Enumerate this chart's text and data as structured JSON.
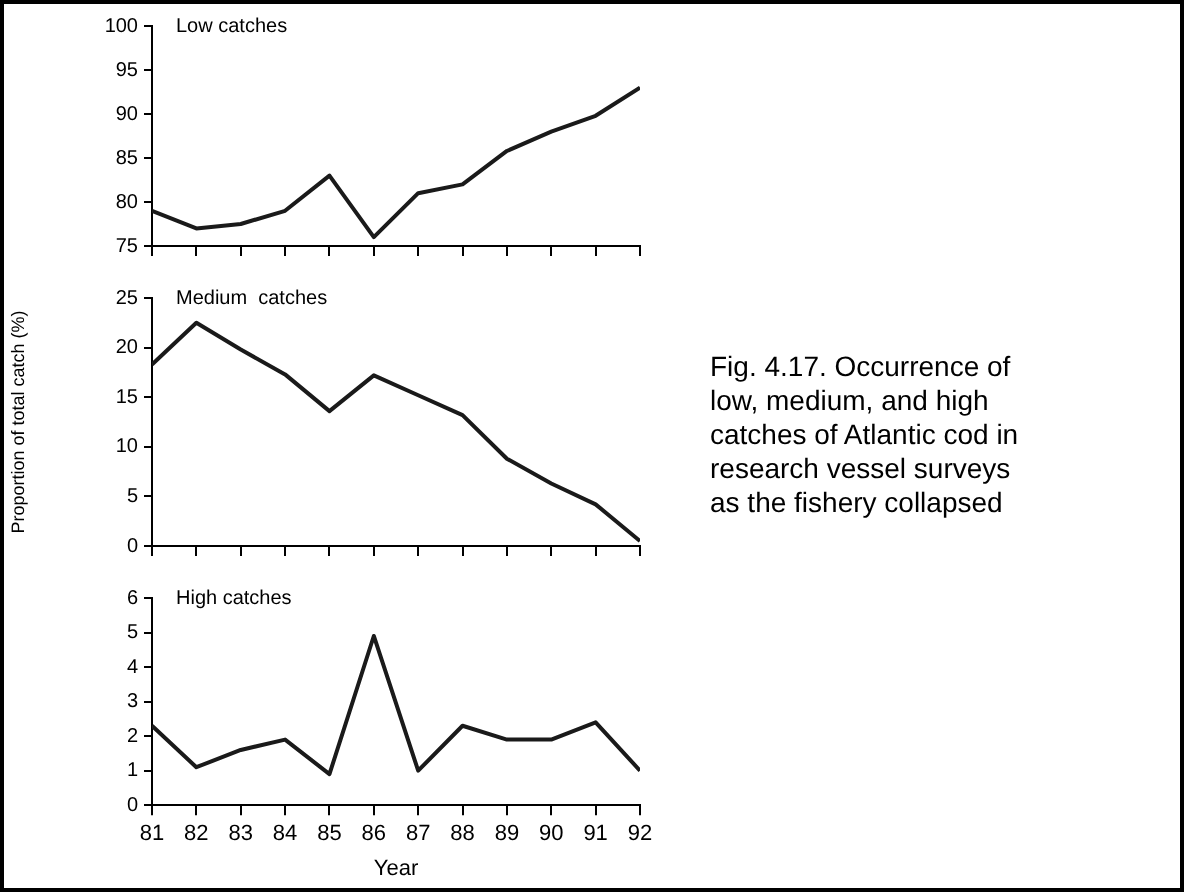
{
  "chart_data": [
    {
      "type": "line",
      "title": "Low catches",
      "x": [
        81,
        82,
        83,
        84,
        85,
        86,
        87,
        88,
        89,
        90,
        91,
        92
      ],
      "series": [
        {
          "color": "#1a1a1a",
          "values": [
            79,
            77,
            77.5,
            79,
            83,
            76,
            81,
            82,
            85.8,
            88,
            89.8,
            93
          ]
        }
      ],
      "xlim": [
        81,
        92
      ],
      "xticks": [
        81,
        82,
        83,
        84,
        85,
        86,
        87,
        88,
        89,
        90,
        91,
        92
      ],
      "ylim": [
        75,
        100
      ],
      "yticks": [
        75,
        80,
        85,
        90,
        95,
        100
      ],
      "tick_labels": "y",
      "grid": false,
      "legend": false,
      "marker": "none"
    },
    {
      "type": "line",
      "title": "Medium  catches",
      "ylabel": "Proportion of total catch (%)",
      "x": [
        81,
        82,
        83,
        84,
        85,
        86,
        87,
        88,
        89,
        90,
        91,
        92
      ],
      "series": [
        {
          "color": "#1a1a1a",
          "values": [
            18.3,
            22.5,
            19.8,
            17.3,
            13.6,
            17.2,
            15.2,
            13.2,
            8.8,
            6.3,
            4.2,
            0.5
          ]
        }
      ],
      "xlim": [
        81,
        92
      ],
      "xticks": [
        81,
        82,
        83,
        84,
        85,
        86,
        87,
        88,
        89,
        90,
        91,
        92
      ],
      "ylim": [
        0,
        25
      ],
      "yticks": [
        0,
        5,
        10,
        15,
        20,
        25
      ],
      "tick_labels": "y",
      "grid": false,
      "legend": false,
      "marker": "none",
      "annotations": [
        "Fig. 4.17. Occurrence of low, medium, and high catches of Atlantic cod in research vessel surveys as the fishery collapsed"
      ]
    },
    {
      "type": "line",
      "title": "High catches",
      "xlabel": "Year",
      "x": [
        81,
        82,
        83,
        84,
        85,
        86,
        87,
        88,
        89,
        90,
        91,
        92
      ],
      "series": [
        {
          "color": "#1a1a1a",
          "values": [
            2.3,
            1.1,
            1.6,
            1.9,
            0.9,
            4.9,
            1.0,
            2.3,
            1.9,
            1.9,
            2.4,
            1.0
          ]
        }
      ],
      "xlim": [
        81,
        92
      ],
      "xticks": [
        81,
        82,
        83,
        84,
        85,
        86,
        87,
        88,
        89,
        90,
        91,
        92
      ],
      "ylim": [
        0,
        6
      ],
      "yticks": [
        0,
        1,
        2,
        3,
        4,
        5,
        6
      ],
      "grid": false,
      "legend": false,
      "marker": "none"
    }
  ]
}
